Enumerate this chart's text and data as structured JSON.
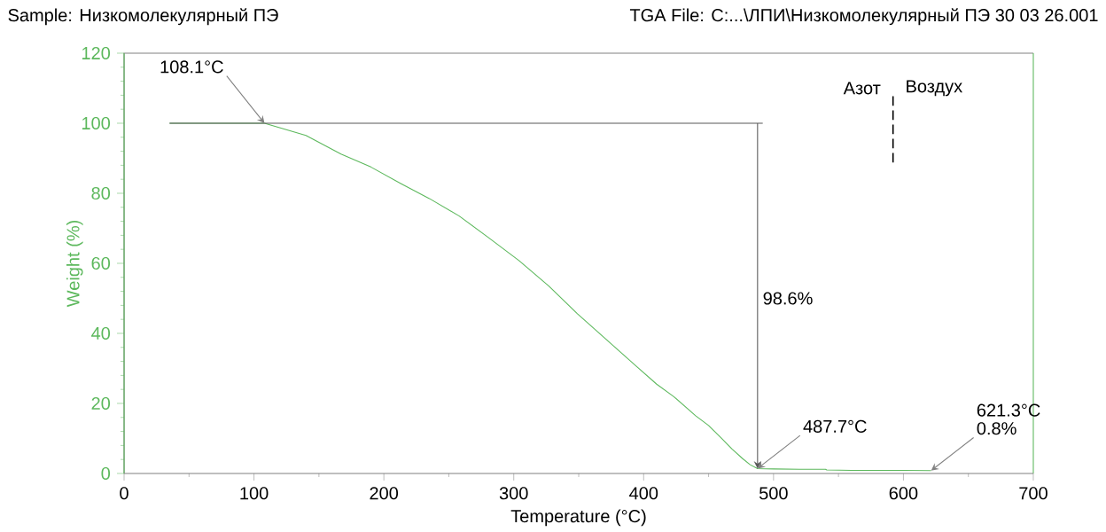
{
  "chart_data": {
    "type": "line",
    "title": "Sample: Низкомолекулярный ПЭ",
    "subtitle": "TGA File: C:...\\ЛПИ\\Низкомолекулярный ПЭ 30 03 26.001",
    "xlabel": "Temperature (°C)",
    "ylabel": "Weight (%)",
    "xlim": [
      0,
      700
    ],
    "ylim": [
      0,
      120
    ],
    "xticks": [
      0,
      100,
      200,
      300,
      400,
      500,
      600,
      700
    ],
    "yticks": [
      0,
      20,
      40,
      60,
      80,
      100,
      120
    ],
    "series": [
      {
        "color": "#5cb85c",
        "x": [
          35,
          60,
          90,
          108.1,
          140,
          167,
          190,
          213,
          235,
          258,
          280,
          304,
          327,
          349,
          372,
          395,
          410,
          423,
          440,
          450,
          460,
          468,
          476,
          482,
          487.7,
          500,
          520,
          540,
          541,
          560,
          580,
          600,
          621.3
        ],
        "values": [
          100,
          100,
          100,
          100,
          96.5,
          91.2,
          87.5,
          82.8,
          78.5,
          73.5,
          67.5,
          60.8,
          53.5,
          45.6,
          38,
          30.4,
          25.5,
          22,
          16.5,
          13.7,
          10,
          7,
          4.3,
          2.5,
          1.4,
          1.3,
          1.2,
          1.2,
          1.0,
          0.9,
          0.9,
          0.9,
          0.8
        ]
      }
    ],
    "ref_lines": [
      {
        "axis": "y",
        "value": 100
      },
      {
        "axis": "x",
        "value": 487.7
      },
      {
        "axis": "x",
        "value": 592,
        "line_style": "dashed"
      }
    ],
    "annotations": [
      {
        "text": "108.1°C",
        "x": 108.1,
        "y": 100
      },
      {
        "text": "487.7°C",
        "x": 487.7,
        "y": 1.4
      },
      {
        "text": "0.8%",
        "x": 621.3,
        "y": 0.8
      },
      "98.6%",
      "621.3°C",
      "Азот",
      "Воздух"
    ],
    "grid": false,
    "marker": "none",
    "line_style": "solid"
  }
}
